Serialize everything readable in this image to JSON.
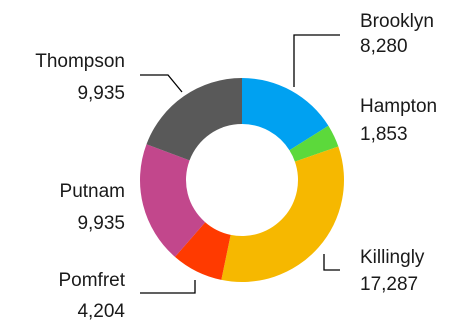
{
  "chart_data": {
    "type": "pie",
    "donut": true,
    "legend": "none",
    "slices": [
      {
        "name": "Brooklyn",
        "value": 8280,
        "display": "8,280",
        "color": "#00a1f1"
      },
      {
        "name": "Hampton",
        "value": 1853,
        "display": "1,853",
        "color": "#5cd93b"
      },
      {
        "name": "Killingly",
        "value": 17287,
        "display": "17,287",
        "color": "#f6b800"
      },
      {
        "name": "Pomfret",
        "value": 4204,
        "display": "4,204",
        "color": "#ff3a00"
      },
      {
        "name": "Putnam",
        "value": 9935,
        "display": "9,935",
        "color": "#c2478c"
      },
      {
        "name": "Thompson",
        "value": 9935,
        "display": "9,935",
        "color": "#595959"
      }
    ]
  }
}
